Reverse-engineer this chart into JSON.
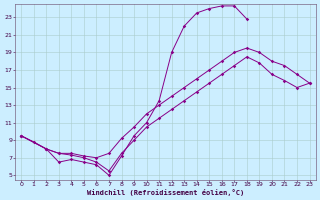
{
  "xlabel": "Windchill (Refroidissement éolien,°C)",
  "bg_color": "#cceeff",
  "grid_color": "#aacccc",
  "line_color": "#880088",
  "spine_color": "#664466",
  "tick_color": "#440044",
  "xlim": [
    -0.5,
    23.5
  ],
  "ylim": [
    4.5,
    24.5
  ],
  "xticks": [
    0,
    1,
    2,
    3,
    4,
    5,
    6,
    7,
    8,
    9,
    10,
    11,
    12,
    13,
    14,
    15,
    16,
    17,
    18,
    19,
    20,
    21,
    22,
    23
  ],
  "yticks": [
    5,
    7,
    9,
    11,
    13,
    15,
    17,
    19,
    21,
    23
  ],
  "line1_x": [
    0,
    1,
    2,
    3,
    4,
    5,
    6,
    7,
    8,
    9,
    10,
    11,
    12,
    13,
    14,
    15,
    16,
    17,
    18
  ],
  "line1_y": [
    9.5,
    8.8,
    8.0,
    6.5,
    6.8,
    6.5,
    6.2,
    5.0,
    7.2,
    9.5,
    11.0,
    13.5,
    19.0,
    22.0,
    23.5,
    24.0,
    24.3,
    24.3,
    22.8
  ],
  "line2_x": [
    0,
    2,
    3,
    4,
    5,
    6,
    7,
    8,
    9,
    10,
    11,
    12,
    13,
    14,
    15,
    16,
    17,
    18,
    19,
    20,
    21,
    22,
    23
  ],
  "line2_y": [
    9.5,
    8.0,
    7.5,
    7.5,
    7.2,
    7.0,
    7.5,
    9.2,
    10.5,
    12.0,
    13.0,
    14.0,
    15.0,
    16.0,
    17.0,
    18.0,
    19.0,
    19.5,
    19.0,
    18.0,
    17.5,
    16.5,
    15.5
  ],
  "line3_x": [
    0,
    2,
    3,
    4,
    5,
    6,
    7,
    8,
    9,
    10,
    11,
    12,
    13,
    14,
    15,
    16,
    17,
    18,
    19,
    20,
    21,
    22,
    23
  ],
  "line3_y": [
    9.5,
    8.0,
    7.5,
    7.3,
    7.0,
    6.5,
    5.5,
    7.5,
    9.0,
    10.5,
    11.5,
    12.5,
    13.5,
    14.5,
    15.5,
    16.5,
    17.5,
    18.5,
    17.8,
    16.5,
    15.8,
    15.0,
    15.5
  ],
  "tick_fontsize": 4.5,
  "xlabel_fontsize": 5.0,
  "marker_size": 1.8,
  "line_width": 0.7
}
